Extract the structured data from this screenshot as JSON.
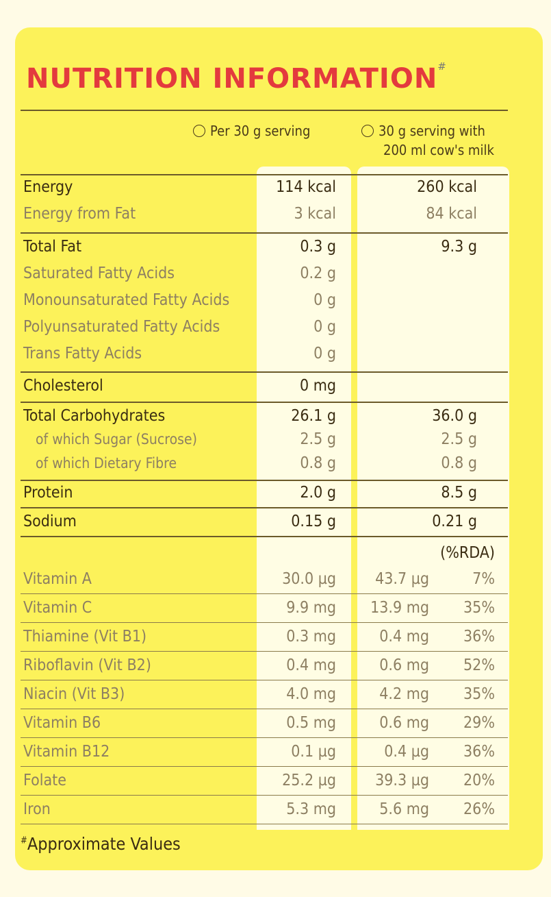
{
  "title": "NUTRITION INFORMATION",
  "title_mark": "#",
  "headers": {
    "col1": "Per 30 g serving",
    "col2_line1": "30 g serving with",
    "col2_line2": "200 ml cow's milk",
    "rda": "(%RDA)"
  },
  "rows": {
    "energy": {
      "label": "Energy",
      "v1": "114 kcal",
      "v2": "260 kcal"
    },
    "energy_fat": {
      "label": "Energy from Fat",
      "v1": "3 kcal",
      "v2": "84 kcal"
    },
    "total_fat": {
      "label": "Total Fat",
      "v1": "0.3 g",
      "v2": "9.3 g"
    },
    "sat_fat": {
      "label": "Saturated Fatty Acids",
      "v1": "0.2 g"
    },
    "mono_fat": {
      "label": "Monounsaturated Fatty Acids",
      "v1": "0 g"
    },
    "poly_fat": {
      "label": "Polyunsaturated Fatty Acids",
      "v1": "0 g"
    },
    "trans_fat": {
      "label": "Trans Fatty Acids",
      "v1": "0 g"
    },
    "cholesterol": {
      "label": "Cholesterol",
      "v1": "0 mg"
    },
    "carbs": {
      "label": "Total Carbohydrates",
      "v1": "26.1 g",
      "v2": "36.0 g"
    },
    "sugar": {
      "label": "of which Sugar (Sucrose)",
      "v1": "2.5 g",
      "v2": "2.5 g"
    },
    "fibre": {
      "label": "of which Dietary Fibre",
      "v1": "0.8 g",
      "v2": "0.8 g"
    },
    "protein": {
      "label": "Protein",
      "v1": "2.0 g",
      "v2": "8.5 g"
    },
    "sodium": {
      "label": "Sodium",
      "v1": "0.15 g",
      "v2": "0.21 g"
    }
  },
  "vitamins": [
    {
      "label": "Vitamin A",
      "v1": "30.0 µg",
      "v2": "43.7 µg",
      "rda": "7%"
    },
    {
      "label": "Vitamin C",
      "v1": "9.9 mg",
      "v2": "13.9 mg",
      "rda": "35%"
    },
    {
      "label": "Thiamine (Vit B1)",
      "v1": "0.3 mg",
      "v2": "0.4 mg",
      "rda": "36%"
    },
    {
      "label": "Riboflavin (Vit B2)",
      "v1": "0.4 mg",
      "v2": "0.6 mg",
      "rda": "52%"
    },
    {
      "label": "Niacin (Vit B3)",
      "v1": "4.0 mg",
      "v2": "4.2 mg",
      "rda": "35%"
    },
    {
      "label": "Vitamin B6",
      "v1": "0.5 mg",
      "v2": "0.6 mg",
      "rda": "29%"
    },
    {
      "label": "Vitamin B12",
      "v1": "0.1 µg",
      "v2": "0.4 µg",
      "rda": "36%"
    },
    {
      "label": "Folate",
      "v1": "25.2 µg",
      "v2": "39.3 µg",
      "rda": "20%"
    },
    {
      "label": "Iron",
      "v1": "5.3 mg",
      "v2": "5.6 mg",
      "rda": "26%"
    }
  ],
  "footnote_mark": "#",
  "footnote": "Approximate Values"
}
